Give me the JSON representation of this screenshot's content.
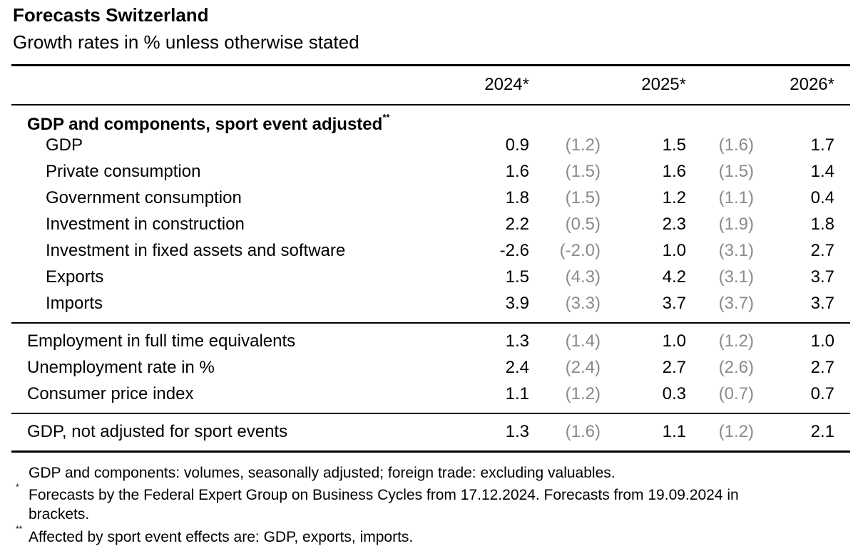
{
  "title": "Forecasts Switzerland",
  "subtitle": "Growth rates in % unless otherwise stated",
  "columns": {
    "y2024": "2024*",
    "y2025": "2025*",
    "y2026": "2026*"
  },
  "section_heading": "GDP and components, sport event adjusted",
  "section_marker": "**",
  "rows_components": [
    {
      "label": "GDP",
      "v2024": "0.9",
      "p2024": "(1.2)",
      "v2025": "1.5",
      "p2025": "(1.6)",
      "v2026": "1.7"
    },
    {
      "label": "Private consumption",
      "v2024": "1.6",
      "p2024": "(1.5)",
      "v2025": "1.6",
      "p2025": "(1.5)",
      "v2026": "1.4"
    },
    {
      "label": "Government consumption",
      "v2024": "1.8",
      "p2024": "(1.5)",
      "v2025": "1.2",
      "p2025": "(1.1)",
      "v2026": "0.4"
    },
    {
      "label": "Investment in construction",
      "v2024": "2.2",
      "p2024": "(0.5)",
      "v2025": "2.3",
      "p2025": "(1.9)",
      "v2026": "1.8"
    },
    {
      "label": "Investment in fixed assets and software",
      "v2024": "-2.6",
      "p2024": "(-2.0)",
      "v2025": "1.0",
      "p2025": "(3.1)",
      "v2026": "2.7"
    },
    {
      "label": "Exports",
      "v2024": "1.5",
      "p2024": "(4.3)",
      "v2025": "4.2",
      "p2025": "(3.1)",
      "v2026": "3.7"
    },
    {
      "label": "Imports",
      "v2024": "3.9",
      "p2024": "(3.3)",
      "v2025": "3.7",
      "p2025": "(3.7)",
      "v2026": "3.7"
    }
  ],
  "rows_other": [
    {
      "label": "Employment in full time equivalents",
      "v2024": "1.3",
      "p2024": "(1.4)",
      "v2025": "1.0",
      "p2025": "(1.2)",
      "v2026": "1.0"
    },
    {
      "label": "Unemployment rate in %",
      "v2024": "2.4",
      "p2024": "(2.4)",
      "v2025": "2.7",
      "p2025": "(2.6)",
      "v2026": "2.7"
    },
    {
      "label": "Consumer price index",
      "v2024": "1.1",
      "p2024": "(1.2)",
      "v2025": "0.3",
      "p2025": "(0.7)",
      "v2026": "0.7"
    }
  ],
  "rows_unadjusted": [
    {
      "label": "GDP, not adjusted for sport events",
      "v2024": "1.3",
      "p2024": "(1.6)",
      "v2025": "1.1",
      "p2025": "(1.2)",
      "v2026": "2.1"
    }
  ],
  "footnotes": {
    "note1": "GDP and components: volumes, seasonally adjusted; foreign trade: excluding valuables.",
    "mark2": "*",
    "note2_line1": "Forecasts by the Federal Expert Group on Business Cycles from 17.12.2024.  Forecasts from 19.09.2024 in",
    "note2_line2": "brackets.",
    "mark3": "**",
    "note3": "Affected by sport event effects are: GDP, exports, imports."
  }
}
